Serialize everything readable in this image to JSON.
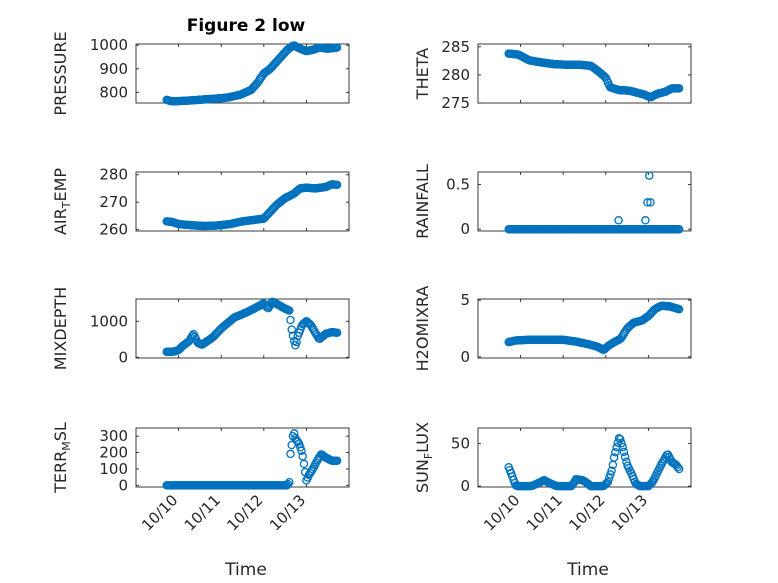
{
  "figure": {
    "title": "Figure 2 low",
    "xlabel": "Time",
    "marker_color": "#0072bd"
  },
  "chart_data": [
    {
      "type": "scatter",
      "ylabel": "PRESSURE",
      "ylim": [
        755,
        1005
      ],
      "yticks": [
        800,
        900,
        1000
      ],
      "ytick_labels": [
        "800",
        "900",
        "1000"
      ],
      "xlim": [
        0,
        5
      ],
      "xticks": [
        1,
        2,
        3,
        4
      ],
      "xtick_labels": [],
      "x_range": [
        0.72,
        4.72
      ],
      "keypoints": [
        [
          0.72,
          768
        ],
        [
          0.85,
          762
        ],
        [
          1.0,
          763
        ],
        [
          1.3,
          766
        ],
        [
          1.6,
          770
        ],
        [
          1.9,
          774
        ],
        [
          2.15,
          778
        ],
        [
          2.45,
          790
        ],
        [
          2.7,
          810
        ],
        [
          2.85,
          840
        ],
        [
          3.0,
          880
        ],
        [
          3.15,
          900
        ],
        [
          3.3,
          930
        ],
        [
          3.55,
          980
        ],
        [
          3.7,
          1000
        ],
        [
          3.85,
          985
        ],
        [
          4.0,
          975
        ],
        [
          4.15,
          980
        ],
        [
          4.3,
          990
        ],
        [
          4.5,
          985
        ],
        [
          4.72,
          990
        ]
      ]
    },
    {
      "type": "scatter",
      "ylabel": "THETA",
      "ylim": [
        275,
        285.5
      ],
      "yticks": [
        275,
        280,
        285
      ],
      "ytick_labels": [
        "275",
        "280",
        "285"
      ],
      "xlim": [
        0,
        5
      ],
      "xticks": [
        1,
        2,
        3,
        4
      ],
      "xtick_labels": [],
      "x_range": [
        0.72,
        4.72
      ],
      "keypoints": [
        [
          0.72,
          283.8
        ],
        [
          0.95,
          283.6
        ],
        [
          1.2,
          282.6
        ],
        [
          1.5,
          282.2
        ],
        [
          1.8,
          281.9
        ],
        [
          2.1,
          281.8
        ],
        [
          2.4,
          281.8
        ],
        [
          2.65,
          281.6
        ],
        [
          2.85,
          280.5
        ],
        [
          3.0,
          279.5
        ],
        [
          3.1,
          277.8
        ],
        [
          3.3,
          277.3
        ],
        [
          3.55,
          277.2
        ],
        [
          3.75,
          276.8
        ],
        [
          3.9,
          276.5
        ],
        [
          4.05,
          276.0
        ],
        [
          4.2,
          276.6
        ],
        [
          4.4,
          277.0
        ],
        [
          4.55,
          277.6
        ],
        [
          4.72,
          277.6
        ]
      ]
    },
    {
      "type": "scatter",
      "ylabel": "AIR",
      "ylabel_sub": "T",
      "ylabel_tail": "EMP",
      "ylim": [
        259.5,
        281
      ],
      "yticks": [
        260,
        270,
        280
      ],
      "ytick_labels": [
        "260",
        "270",
        "280"
      ],
      "xlim": [
        0,
        5
      ],
      "xticks": [
        1,
        2,
        3,
        4
      ],
      "xtick_labels": [],
      "x_range": [
        0.72,
        4.72
      ],
      "keypoints": [
        [
          0.72,
          263
        ],
        [
          0.85,
          262.8
        ],
        [
          1.0,
          262.0
        ],
        [
          1.3,
          261.6
        ],
        [
          1.6,
          261.3
        ],
        [
          1.9,
          261.5
        ],
        [
          2.2,
          262.0
        ],
        [
          2.5,
          263.0
        ],
        [
          2.75,
          263.5
        ],
        [
          3.0,
          264.0
        ],
        [
          3.15,
          266.5
        ],
        [
          3.3,
          269
        ],
        [
          3.5,
          271.5
        ],
        [
          3.7,
          273
        ],
        [
          3.85,
          275
        ],
        [
          4.0,
          275.3
        ],
        [
          4.2,
          275
        ],
        [
          4.45,
          275.5
        ],
        [
          4.6,
          276.5
        ],
        [
          4.72,
          276.3
        ]
      ]
    },
    {
      "type": "scatter",
      "ylabel": "RAINFALL",
      "ylim": [
        -0.02,
        0.64
      ],
      "yticks": [
        0,
        0.5
      ],
      "ytick_labels": [
        "0",
        "0.5"
      ],
      "xlim": [
        0,
        5
      ],
      "xticks": [
        1,
        2,
        3,
        4
      ],
      "xtick_labels": [],
      "x_range": [
        0.72,
        4.72
      ],
      "keypoints": [
        [
          0.72,
          0
        ],
        [
          4.72,
          0
        ]
      ],
      "extra_points": [
        [
          3.3,
          0.1
        ],
        [
          3.93,
          0.1
        ],
        [
          3.98,
          0.3
        ],
        [
          4.02,
          0.6
        ],
        [
          4.05,
          0.3
        ]
      ]
    },
    {
      "type": "scatter",
      "ylabel": "MIXDEPTH",
      "ylim": [
        -20,
        1620
      ],
      "yticks": [
        0,
        1000
      ],
      "ytick_labels": [
        "0",
        "1000"
      ],
      "xlim": [
        0,
        5
      ],
      "xticks": [
        1,
        2,
        3,
        4
      ],
      "xtick_labels": [],
      "x_range": [
        0.72,
        4.72
      ],
      "keypoints": [
        [
          0.72,
          150
        ],
        [
          0.9,
          160
        ],
        [
          1.0,
          200
        ],
        [
          1.1,
          320
        ],
        [
          1.25,
          450
        ],
        [
          1.35,
          650
        ],
        [
          1.45,
          400
        ],
        [
          1.55,
          350
        ],
        [
          1.8,
          550
        ],
        [
          2.0,
          800
        ],
        [
          2.3,
          1100
        ],
        [
          2.6,
          1250
        ],
        [
          2.85,
          1400
        ],
        [
          3.0,
          1500
        ],
        [
          3.1,
          1350
        ],
        [
          3.2,
          1550
        ],
        [
          3.35,
          1450
        ],
        [
          3.5,
          1350
        ],
        [
          3.6,
          1300
        ],
        [
          3.65,
          800
        ],
        [
          3.7,
          500
        ],
        [
          3.75,
          300
        ],
        [
          3.8,
          600
        ],
        [
          3.9,
          900
        ],
        [
          4.0,
          1000
        ],
        [
          4.1,
          900
        ],
        [
          4.2,
          700
        ],
        [
          4.3,
          500
        ],
        [
          4.45,
          650
        ],
        [
          4.6,
          700
        ],
        [
          4.72,
          680
        ]
      ]
    },
    {
      "type": "scatter",
      "ylabel": "H2OMIXRA",
      "ylim": [
        -0.1,
        5.1
      ],
      "yticks": [
        0,
        5
      ],
      "ytick_labels": [
        "0",
        "5"
      ],
      "xlim": [
        0,
        5
      ],
      "xticks": [
        1,
        2,
        3,
        4
      ],
      "xtick_labels": [],
      "x_range": [
        0.72,
        4.72
      ],
      "keypoints": [
        [
          0.72,
          1.3
        ],
        [
          0.9,
          1.45
        ],
        [
          1.2,
          1.5
        ],
        [
          1.6,
          1.5
        ],
        [
          2.0,
          1.5
        ],
        [
          2.3,
          1.35
        ],
        [
          2.6,
          1.1
        ],
        [
          2.8,
          0.9
        ],
        [
          2.95,
          0.6
        ],
        [
          3.05,
          0.95
        ],
        [
          3.2,
          1.3
        ],
        [
          3.35,
          1.6
        ],
        [
          3.5,
          2.5
        ],
        [
          3.65,
          3.0
        ],
        [
          3.85,
          3.2
        ],
        [
          4.0,
          3.6
        ],
        [
          4.15,
          4.2
        ],
        [
          4.3,
          4.5
        ],
        [
          4.5,
          4.45
        ],
        [
          4.72,
          4.2
        ]
      ]
    },
    {
      "type": "scatter",
      "ylabel": "TERR",
      "ylabel_sub": "M",
      "ylabel_tail": "SL",
      "ylim": [
        -10,
        350
      ],
      "yticks": [
        0,
        100,
        200,
        300
      ],
      "ytick_labels": [
        "0",
        "100",
        "200",
        "300"
      ],
      "xlim": [
        0,
        5
      ],
      "xticks": [
        1,
        2,
        3,
        4
      ],
      "xtick_labels": [
        "10/10",
        "10/11",
        "10/12",
        "10/13"
      ],
      "x_range": [
        0.72,
        4.72
      ],
      "keypoints": [
        [
          0.72,
          0
        ],
        [
          3.55,
          0
        ],
        [
          3.6,
          20
        ],
        [
          3.62,
          180
        ],
        [
          3.7,
          330
        ],
        [
          3.75,
          280
        ],
        [
          3.82,
          260
        ],
        [
          3.9,
          200
        ],
        [
          3.95,
          120
        ],
        [
          4.0,
          30
        ],
        [
          4.05,
          60
        ],
        [
          4.15,
          100
        ],
        [
          4.25,
          150
        ],
        [
          4.35,
          190
        ],
        [
          4.45,
          170
        ],
        [
          4.6,
          150
        ],
        [
          4.72,
          150
        ]
      ]
    },
    {
      "type": "scatter",
      "ylabel": "SUN",
      "ylabel_sub": "F",
      "ylabel_tail": "LUX",
      "ylim": [
        -1,
        68
      ],
      "yticks": [
        0,
        50
      ],
      "ytick_labels": [
        "0",
        "50"
      ],
      "xlim": [
        0,
        5
      ],
      "xticks": [
        1,
        2,
        3,
        4
      ],
      "xtick_labels": [
        "10/10",
        "10/11",
        "10/12",
        "10/13"
      ],
      "x_range": [
        0.72,
        4.72
      ],
      "keypoints": [
        [
          0.72,
          22
        ],
        [
          0.78,
          15
        ],
        [
          0.85,
          5
        ],
        [
          0.9,
          0
        ],
        [
          1.25,
          0
        ],
        [
          1.4,
          3
        ],
        [
          1.55,
          7
        ],
        [
          1.7,
          3
        ],
        [
          1.85,
          0
        ],
        [
          2.2,
          0
        ],
        [
          2.3,
          8
        ],
        [
          2.45,
          7
        ],
        [
          2.55,
          4
        ],
        [
          2.65,
          0
        ],
        [
          2.95,
          0
        ],
        [
          3.05,
          5
        ],
        [
          3.15,
          20
        ],
        [
          3.2,
          35
        ],
        [
          3.25,
          45
        ],
        [
          3.32,
          58
        ],
        [
          3.4,
          45
        ],
        [
          3.5,
          25
        ],
        [
          3.6,
          15
        ],
        [
          3.7,
          3
        ],
        [
          3.8,
          0
        ],
        [
          4.0,
          0
        ],
        [
          4.1,
          5
        ],
        [
          4.2,
          15
        ],
        [
          4.3,
          25
        ],
        [
          4.45,
          38
        ],
        [
          4.55,
          28
        ],
        [
          4.65,
          25
        ],
        [
          4.72,
          20
        ]
      ]
    }
  ]
}
